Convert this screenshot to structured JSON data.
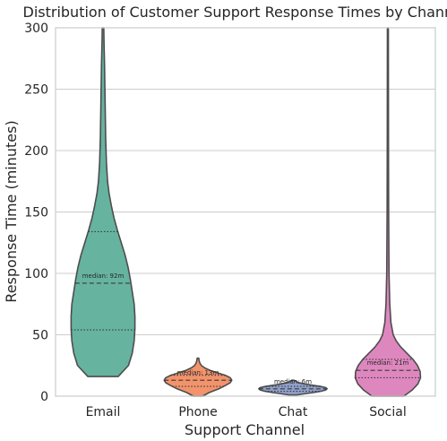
{
  "chart_data": {
    "type": "violin",
    "title": "Distribution of Customer Support Response Times by Channel",
    "xlabel": "Support Channel",
    "ylabel": "Response Time (minutes)",
    "ylim": [
      0,
      300
    ],
    "yticks": [
      0,
      50,
      100,
      150,
      200,
      250,
      300
    ],
    "grid": true,
    "categories": [
      "Email",
      "Phone",
      "Chat",
      "Social"
    ],
    "colors": [
      "#66b3a0",
      "#f2936b",
      "#8f9fc9",
      "#de87bf"
    ],
    "edge_color": "#4d4d4d",
    "violins": [
      {
        "category": "Email",
        "min": 16,
        "q1": 54,
        "median": 92,
        "q3": 134,
        "max": 300,
        "median_label": "median: 92m",
        "density": [
          [
            16,
            0.4
          ],
          [
            25,
            0.67
          ],
          [
            35,
            0.77
          ],
          [
            45,
            0.82
          ],
          [
            55,
            0.84
          ],
          [
            65,
            0.84
          ],
          [
            75,
            0.82
          ],
          [
            85,
            0.77
          ],
          [
            95,
            0.72
          ],
          [
            105,
            0.66
          ],
          [
            115,
            0.58
          ],
          [
            125,
            0.48
          ],
          [
            135,
            0.38
          ],
          [
            145,
            0.29
          ],
          [
            155,
            0.22
          ],
          [
            165,
            0.16
          ],
          [
            175,
            0.12
          ],
          [
            190,
            0.09
          ],
          [
            210,
            0.07
          ],
          [
            230,
            0.06
          ],
          [
            250,
            0.05
          ],
          [
            270,
            0.04
          ],
          [
            290,
            0.025
          ],
          [
            300,
            0.02
          ]
        ]
      },
      {
        "category": "Phone",
        "min": 0,
        "q1": 8,
        "median": 13,
        "q3": 17,
        "max": 31,
        "median_label": "median: 13m",
        "density": [
          [
            0,
            0.12
          ],
          [
            3,
            0.3
          ],
          [
            6,
            0.55
          ],
          [
            9,
            0.74
          ],
          [
            11,
            0.85
          ],
          [
            13,
            0.89
          ],
          [
            15,
            0.85
          ],
          [
            17,
            0.72
          ],
          [
            19,
            0.52
          ],
          [
            21,
            0.32
          ],
          [
            23,
            0.18
          ],
          [
            25,
            0.09
          ],
          [
            27,
            0.05
          ],
          [
            29,
            0.03
          ],
          [
            31,
            0.02
          ]
        ]
      },
      {
        "category": "Chat",
        "min": 1,
        "q1": 4,
        "median": 6,
        "q3": 8,
        "max": 13,
        "median_label": "median: 6m",
        "density": [
          [
            1,
            0.1
          ],
          [
            2,
            0.32
          ],
          [
            3,
            0.55
          ],
          [
            4,
            0.74
          ],
          [
            5,
            0.86
          ],
          [
            6,
            0.9
          ],
          [
            7,
            0.86
          ],
          [
            8,
            0.72
          ],
          [
            9,
            0.5
          ],
          [
            10,
            0.3
          ],
          [
            11,
            0.16
          ],
          [
            12,
            0.08
          ],
          [
            13,
            0.03
          ]
        ]
      },
      {
        "category": "Social",
        "min": 0,
        "q1": 15,
        "median": 21,
        "q3": 30,
        "max": 300,
        "median_label": "median: 21m",
        "density": [
          [
            0,
            0.42
          ],
          [
            5,
            0.64
          ],
          [
            10,
            0.79
          ],
          [
            15,
            0.86
          ],
          [
            20,
            0.85
          ],
          [
            25,
            0.78
          ],
          [
            30,
            0.66
          ],
          [
            35,
            0.5
          ],
          [
            40,
            0.34
          ],
          [
            45,
            0.22
          ],
          [
            50,
            0.14
          ],
          [
            60,
            0.08
          ],
          [
            75,
            0.05
          ],
          [
            100,
            0.03
          ],
          [
            150,
            0.02
          ],
          [
            200,
            0.016
          ],
          [
            250,
            0.014
          ],
          [
            300,
            0.012
          ]
        ]
      }
    ]
  }
}
